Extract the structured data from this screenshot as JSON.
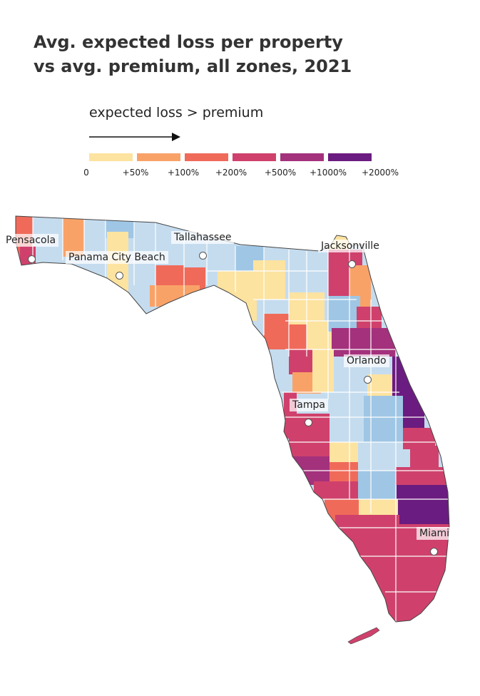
{
  "title_line1": "Avg. expected loss per property",
  "title_line2": "vs avg. premium, all zones, 2021",
  "legend": {
    "caption": "expected loss > premium",
    "arrow_icon": "arrow-right-icon",
    "colors": [
      "#fde3a0",
      "#f9a268",
      "#f06a5a",
      "#cf416c",
      "#a4317c",
      "#6b1c80"
    ],
    "labels": [
      "0",
      "+50%",
      "+100%",
      "+200%",
      "+500%",
      "+1000%",
      "+2000%"
    ]
  },
  "map_colors": {
    "below_zero": "#c5dcef",
    "below_zero_dark": "#9fc6e5",
    "bucket_0": "#fde3a0",
    "bucket_50": "#f9a268",
    "bucket_100": "#f06a5a",
    "bucket_200": "#cf416c",
    "bucket_500": "#a4317c",
    "bucket_1000": "#6b1c80"
  },
  "cities": [
    {
      "name": "Pensacola"
    },
    {
      "name": "Panama City Beach"
    },
    {
      "name": "Tallahassee"
    },
    {
      "name": "Jacksonville"
    },
    {
      "name": "Orlando"
    },
    {
      "name": "Tampa"
    },
    {
      "name": "Miami"
    }
  ]
}
